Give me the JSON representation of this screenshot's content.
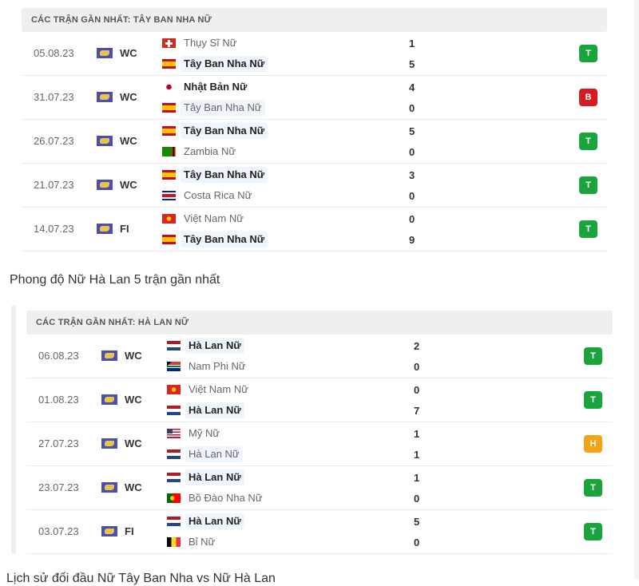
{
  "colors": {
    "win": "#1aa53c",
    "loss": "#d71920",
    "draw": "#f4a316"
  },
  "sections": [
    {
      "header": "CÁC TRẬN GẦN NHẤT: TÂY BAN NHA NỮ",
      "matches": [
        {
          "date": "05.08.23",
          "league": "WC",
          "home": {
            "name": "Thụy Sĩ Nữ",
            "flag": "ch",
            "bold": false,
            "hl": false
          },
          "away": {
            "name": "Tây Ban Nha Nữ",
            "flag": "es",
            "bold": true,
            "hl": true
          },
          "hs": "1",
          "as": "5",
          "result": "T",
          "rc": "win"
        },
        {
          "date": "31.07.23",
          "league": "WC",
          "home": {
            "name": "Nhật Bản Nữ",
            "flag": "jp",
            "bold": true,
            "hl": false
          },
          "away": {
            "name": "Tây Ban Nha Nữ",
            "flag": "es",
            "bold": false,
            "hl": true
          },
          "hs": "4",
          "as": "0",
          "result": "B",
          "rc": "loss"
        },
        {
          "date": "26.07.23",
          "league": "WC",
          "home": {
            "name": "Tây Ban Nha Nữ",
            "flag": "es",
            "bold": true,
            "hl": true
          },
          "away": {
            "name": "Zambia Nữ",
            "flag": "zm",
            "bold": false,
            "hl": false
          },
          "hs": "5",
          "as": "0",
          "result": "T",
          "rc": "win"
        },
        {
          "date": "21.07.23",
          "league": "WC",
          "home": {
            "name": "Tây Ban Nha Nữ",
            "flag": "es",
            "bold": true,
            "hl": true
          },
          "away": {
            "name": "Costa Rica Nữ",
            "flag": "cr",
            "bold": false,
            "hl": false
          },
          "hs": "3",
          "as": "0",
          "result": "T",
          "rc": "win"
        },
        {
          "date": "14.07.23",
          "league": "FI",
          "home": {
            "name": "Việt Nam Nữ",
            "flag": "vn",
            "bold": false,
            "hl": false
          },
          "away": {
            "name": "Tây Ban Nha Nữ",
            "flag": "es",
            "bold": true,
            "hl": true
          },
          "hs": "0",
          "as": "9",
          "result": "T",
          "rc": "win"
        }
      ]
    },
    {
      "header": "CÁC TRẬN GẦN NHẤT: HÀ LAN NỮ",
      "matches": [
        {
          "date": "06.08.23",
          "league": "WC",
          "home": {
            "name": "Hà Lan Nữ",
            "flag": "nl",
            "bold": true,
            "hl": true
          },
          "away": {
            "name": "Nam Phi Nữ",
            "flag": "za",
            "bold": false,
            "hl": false
          },
          "hs": "2",
          "as": "0",
          "result": "T",
          "rc": "win"
        },
        {
          "date": "01.08.23",
          "league": "WC",
          "home": {
            "name": "Việt Nam Nữ",
            "flag": "vn",
            "bold": false,
            "hl": false
          },
          "away": {
            "name": "Hà Lan Nữ",
            "flag": "nl",
            "bold": true,
            "hl": true
          },
          "hs": "0",
          "as": "7",
          "result": "T",
          "rc": "win"
        },
        {
          "date": "27.07.23",
          "league": "WC",
          "home": {
            "name": "Mỹ Nữ",
            "flag": "us",
            "bold": false,
            "hl": false
          },
          "away": {
            "name": "Hà Lan Nữ",
            "flag": "nl",
            "bold": false,
            "hl": true
          },
          "hs": "1",
          "as": "1",
          "result": "H",
          "rc": "draw"
        },
        {
          "date": "23.07.23",
          "league": "WC",
          "home": {
            "name": "Hà Lan Nữ",
            "flag": "nl",
            "bold": true,
            "hl": true
          },
          "away": {
            "name": "Bồ Đào Nha Nữ",
            "flag": "pt",
            "bold": false,
            "hl": false
          },
          "hs": "1",
          "as": "0",
          "result": "T",
          "rc": "win"
        },
        {
          "date": "03.07.23",
          "league": "FI",
          "home": {
            "name": "Hà Lan Nữ",
            "flag": "nl",
            "bold": true,
            "hl": true
          },
          "away": {
            "name": "Bỉ Nữ",
            "flag": "be",
            "bold": false,
            "hl": false
          },
          "hs": "5",
          "as": "0",
          "result": "T",
          "rc": "win"
        }
      ]
    }
  ],
  "netherlands_form_title": "Phong độ Nữ Hà Lan 5 trận gần nhất",
  "h2h_title": "Lịch sử đối đầu Nữ Tây Ban Nha vs Nữ Hà Lan"
}
